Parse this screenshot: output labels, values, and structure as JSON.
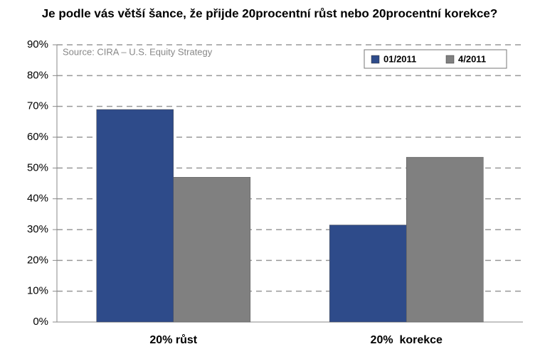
{
  "chart_data": {
    "type": "bar",
    "title": "Je podle vás větší šance, že přijde 20procentní růst nebo 20procentní korekce?",
    "annotation": "Source: CIRA – U.S. Equity Strategy",
    "categories": [
      "20% růst",
      "20%  korekce"
    ],
    "series": [
      {
        "name": "01/2011",
        "color": "#2e4b8a",
        "values": [
          69,
          31.5
        ]
      },
      {
        "name": "4/2011",
        "color": "#808080",
        "values": [
          47,
          53.5
        ]
      }
    ],
    "ylim": [
      0,
      90
    ],
    "yticks": [
      {
        "value": 0,
        "label": "0%"
      },
      {
        "value": 10,
        "label": "10%"
      },
      {
        "value": 20,
        "label": "20%"
      },
      {
        "value": 30,
        "label": "30%"
      },
      {
        "value": 40,
        "label": "40%"
      },
      {
        "value": 50,
        "label": "50%"
      },
      {
        "value": 60,
        "label": "60%"
      },
      {
        "value": 70,
        "label": "70%"
      },
      {
        "value": 80,
        "label": "80%"
      },
      {
        "value": 90,
        "label": "90%"
      }
    ],
    "grid": true,
    "legend": "top-right"
  }
}
